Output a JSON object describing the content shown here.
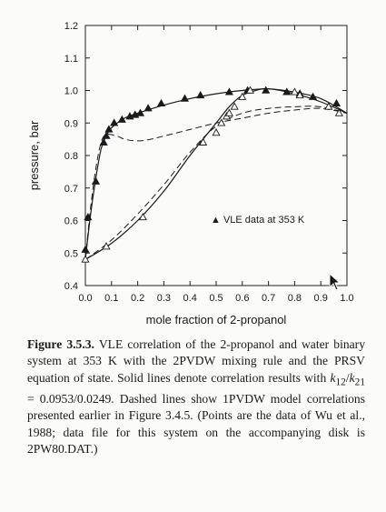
{
  "chart_data": {
    "type": "line",
    "xlabel": "mole fraction of 2-propanol",
    "ylabel": "pressure, bar",
    "xlim": [
      0.0,
      1.0
    ],
    "ylim": [
      0.4,
      1.2
    ],
    "xticks": [
      "0.0",
      "0.1",
      "0.2",
      "0.3",
      "0.4",
      "0.5",
      "0.6",
      "0.7",
      "0.8",
      "0.9",
      "1.0"
    ],
    "yticks": [
      "0.4",
      "0.5",
      "0.6",
      "0.7",
      "0.8",
      "0.9",
      "1.0",
      "1.1",
      "1.2"
    ],
    "legend": "▲ VLE data at 353 K",
    "legend_position": "center-right",
    "grid": false,
    "series": [
      {
        "name": "VLE data at 353 K",
        "kind": "marker-filled-triangle",
        "x": [
          0.0,
          0.01,
          0.04,
          0.07,
          0.08,
          0.09,
          0.11,
          0.14,
          0.17,
          0.19,
          0.21,
          0.24,
          0.29,
          0.38,
          0.44,
          0.55,
          0.62,
          0.69,
          0.77,
          0.82,
          0.87,
          0.96
        ],
        "y": [
          0.51,
          0.61,
          0.72,
          0.84,
          0.86,
          0.88,
          0.9,
          0.91,
          0.92,
          0.925,
          0.93,
          0.945,
          0.96,
          0.975,
          0.985,
          0.995,
          1.0,
          1.0,
          0.995,
          0.99,
          0.98,
          0.96
        ]
      },
      {
        "kind": "marker-open-triangle",
        "x": [
          0.0,
          0.08,
          0.22,
          0.45,
          0.5,
          0.52,
          0.54,
          0.55,
          0.57,
          0.6,
          0.63,
          0.8,
          0.82,
          0.93,
          0.97
        ],
        "y": [
          0.48,
          0.52,
          0.61,
          0.84,
          0.87,
          0.9,
          0.92,
          0.93,
          0.95,
          0.98,
          1.0,
          0.995,
          0.985,
          0.95,
          0.93
        ]
      },
      {
        "kind": "solid-bubble",
        "x": [
          0.0,
          0.02,
          0.04,
          0.06,
          0.08,
          0.1,
          0.15,
          0.2,
          0.3,
          0.4,
          0.5,
          0.6,
          0.7,
          0.8,
          0.9,
          1.0
        ],
        "y": [
          0.48,
          0.62,
          0.73,
          0.82,
          0.86,
          0.885,
          0.915,
          0.93,
          0.955,
          0.975,
          0.99,
          1.0,
          1.005,
          0.995,
          0.975,
          0.93
        ]
      },
      {
        "kind": "solid-dew",
        "x": [
          0.0,
          0.1,
          0.2,
          0.3,
          0.4,
          0.5,
          0.55,
          0.6,
          0.65,
          0.7,
          0.8,
          0.9,
          1.0
        ],
        "y": [
          0.48,
          0.53,
          0.6,
          0.69,
          0.8,
          0.9,
          0.95,
          0.985,
          1.0,
          1.005,
          0.99,
          0.965,
          0.93
        ]
      },
      {
        "kind": "dashed-bubble",
        "x": [
          0.0,
          0.02,
          0.04,
          0.06,
          0.08,
          0.12,
          0.15,
          0.2,
          0.25,
          0.3,
          0.4,
          0.5,
          0.6,
          0.7,
          0.8,
          0.9,
          1.0
        ],
        "y": [
          0.48,
          0.64,
          0.76,
          0.84,
          0.865,
          0.86,
          0.85,
          0.845,
          0.85,
          0.86,
          0.88,
          0.9,
          0.915,
          0.93,
          0.94,
          0.945,
          0.93
        ]
      },
      {
        "kind": "dashed-dew",
        "x": [
          0.0,
          0.1,
          0.2,
          0.3,
          0.4,
          0.5,
          0.6,
          0.7,
          0.8,
          0.9,
          1.0
        ],
        "y": [
          0.48,
          0.54,
          0.62,
          0.71,
          0.81,
          0.89,
          0.93,
          0.945,
          0.95,
          0.95,
          0.93
        ]
      }
    ]
  },
  "caption": {
    "label": "Figure 3.5.3.",
    "text": "VLE correlation of the 2-propanol and water binary system at 353 K with the 2PVDW mixing rule and the PRSV equation of state. Solid lines denote correlation results with k12/k21 = 0.0953/0.0249. Dashed lines show 1PVDW model correlations presented earlier in Figure 3.4.5. (Points are the data of Wu et al., 1988; data file for this system on the accompanying disk is 2PW80.DAT.)",
    "part1": "VLE correlation of the 2-propanol and water binary system at 353 K with the 2PVDW mixing rule and the PRSV equation of state. Solid lines denote correlation results with ",
    "k12": "12",
    "k21": "21",
    "part2": " = 0.0953/0.0249. Dashed lines show 1PVDW model correlations presented earlier in Figure 3.4.5. (Points are the data of Wu et al., 1988; data file for this system on the accompanying disk is 2PW80.DAT.)"
  }
}
